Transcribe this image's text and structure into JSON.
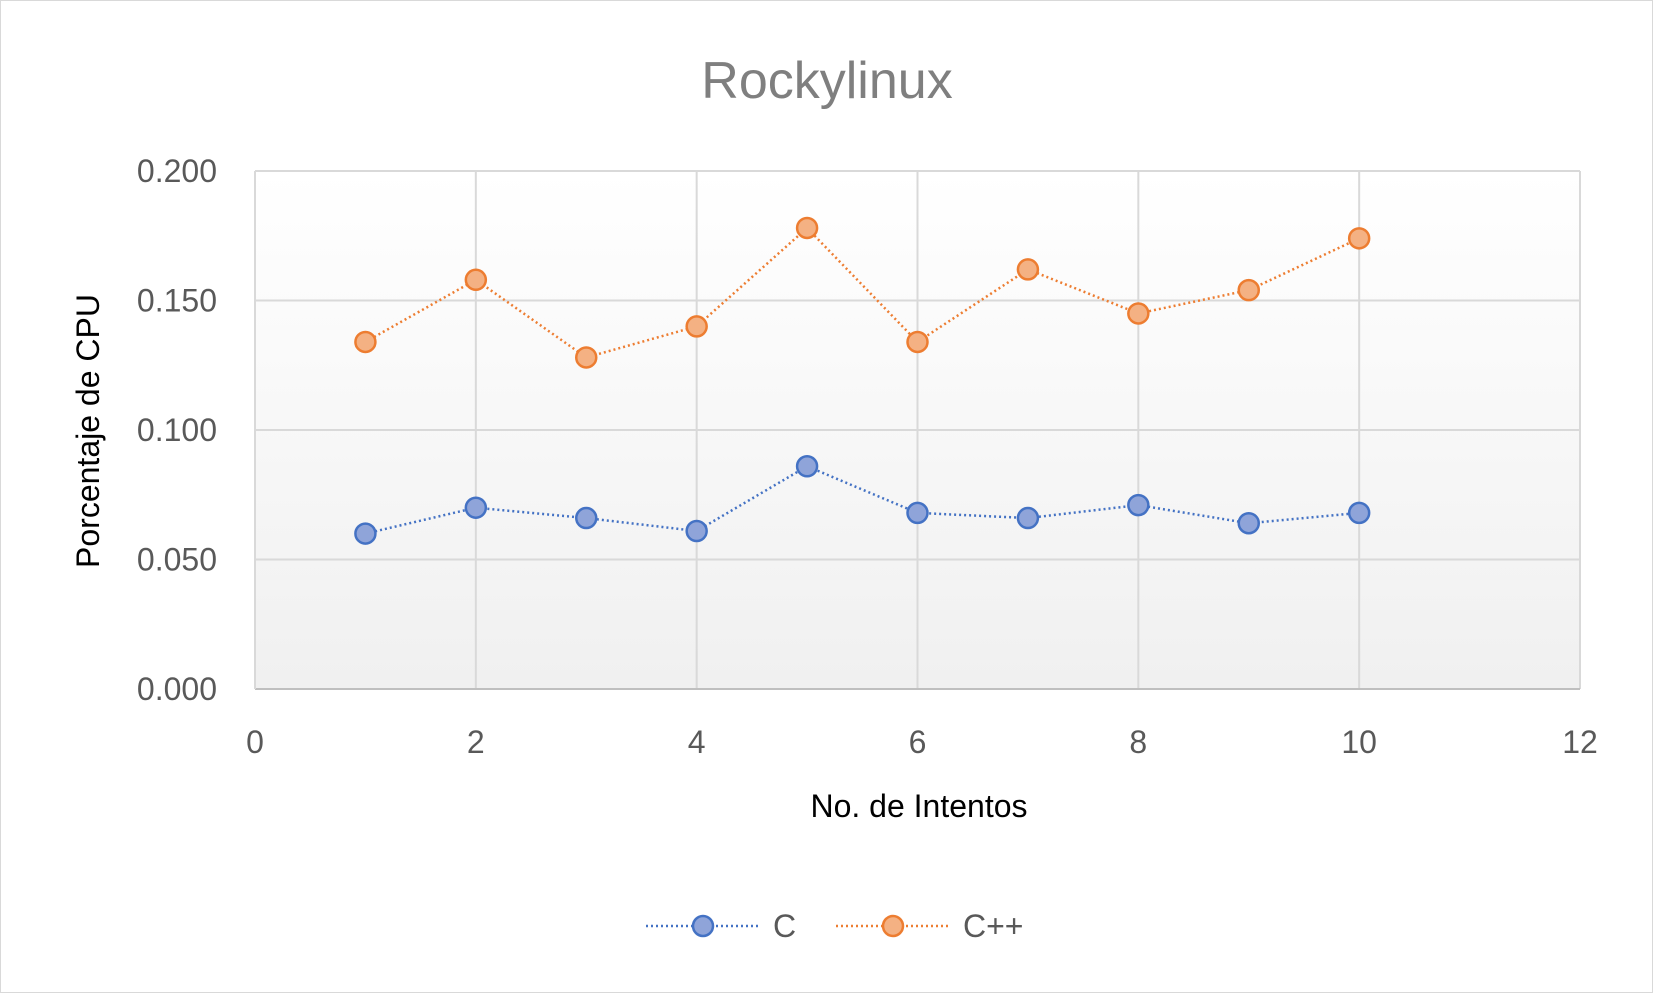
{
  "chart_data": {
    "type": "scatter",
    "title": "Rockylinux",
    "xlabel": "No. de Intentos",
    "ylabel": "Porcentaje de CPU",
    "xlim": [
      0,
      12
    ],
    "ylim": [
      0,
      0.2
    ],
    "x_ticks": [
      0,
      2,
      4,
      6,
      8,
      10,
      12
    ],
    "x_tick_labels": [
      "0",
      "2",
      "4",
      "6",
      "8",
      "10",
      "12"
    ],
    "y_ticks": [
      0,
      0.05,
      0.1,
      0.15,
      0.2
    ],
    "y_tick_labels": [
      "0.000",
      "0.050",
      "0.100",
      "0.150",
      "0.200"
    ],
    "grid": true,
    "legend_position": "bottom",
    "series": [
      {
        "name": "C",
        "color": "#4472c4",
        "fill": "#8fa4d9",
        "x": [
          1,
          2,
          3,
          4,
          5,
          6,
          7,
          8,
          9,
          10
        ],
        "y": [
          0.06,
          0.07,
          0.066,
          0.061,
          0.086,
          0.068,
          0.066,
          0.071,
          0.064,
          0.068
        ]
      },
      {
        "name": "C++",
        "color": "#ed7d31",
        "fill": "#f4b183",
        "x": [
          1,
          2,
          3,
          4,
          5,
          6,
          7,
          8,
          9,
          10
        ],
        "y": [
          0.134,
          0.158,
          0.128,
          0.14,
          0.178,
          0.134,
          0.162,
          0.145,
          0.154,
          0.174
        ]
      }
    ]
  }
}
